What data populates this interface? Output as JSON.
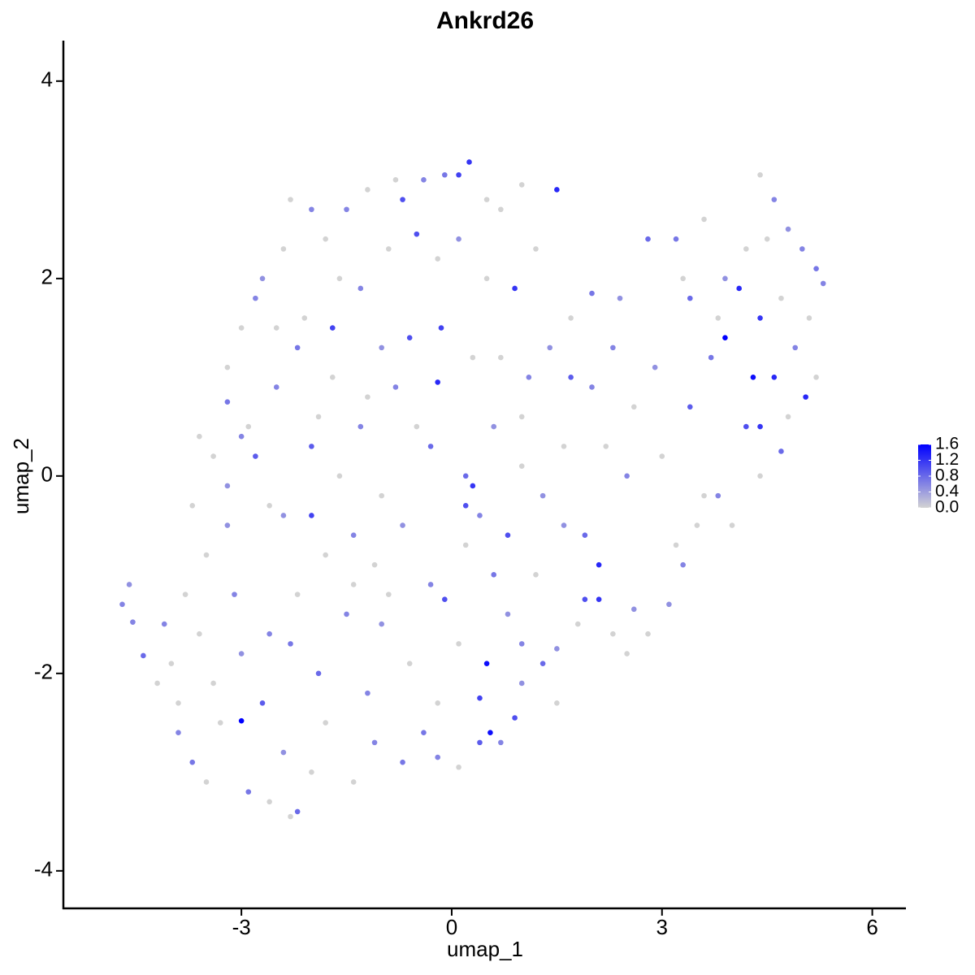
{
  "chart_data": {
    "type": "scatter",
    "title": "Ankrd26",
    "x_label": "umap_1",
    "y_label": "umap_2",
    "xlim": [
      -5.54,
      6.48
    ],
    "ylim": [
      -4.38,
      4.41
    ],
    "xticks": [
      -3,
      0,
      3,
      6
    ],
    "yticks": [
      -4,
      -2,
      0,
      2,
      4
    ],
    "colors": [
      "#D3D3D3",
      "#0000FF"
    ],
    "color_lim": [
      0,
      1.6
    ],
    "color_ticks": [
      {
        "value": 0,
        "label": "0.0"
      },
      0.4,
      0.8,
      1.2,
      1.6
    ],
    "x": [
      -4.7,
      -4.6,
      -4.55,
      -4.4,
      -4.2,
      -4.0,
      -3.9,
      -3.7,
      -3.5,
      -3.3,
      -3.0,
      -2.9,
      -2.6,
      -2.3,
      -2.2,
      -2.0,
      -1.4,
      -1.1,
      -0.7,
      -0.2,
      0.1,
      0.4,
      0.55,
      0.7,
      0.9,
      0.5,
      0.4,
      -0.2,
      -0.6,
      -1.0,
      -1.5,
      -1.9,
      -2.3,
      -2.6,
      -3.0,
      -3.4,
      -3.6,
      -3.8,
      -3.5,
      -3.2,
      -3.4,
      -3.0,
      -2.8,
      -2.6,
      -2.4,
      -2.0,
      -2.0,
      -1.6,
      -1.4,
      -1.1,
      -0.7,
      -0.3,
      -0.1,
      0.2,
      0.4,
      0.6,
      0.8,
      1.0,
      1.3,
      1.5,
      1.8,
      1.9,
      2.1,
      2.3,
      2.1,
      1.9,
      1.6,
      1.3,
      1.0,
      0.8,
      0.3,
      0.2,
      -0.3,
      -0.5,
      -0.8,
      -1.2,
      -1.3,
      -1.7,
      -2.2,
      -2.5,
      -2.8,
      -3.0,
      -3.2,
      -3.2,
      -2.9,
      -2.7,
      -2.4,
      -2.3,
      -2.0,
      -1.8,
      -1.5,
      -1.2,
      -0.8,
      -0.7,
      -0.4,
      -0.1,
      0.1,
      0.25,
      0.5,
      0.7,
      1.0,
      1.5,
      1.2,
      0.9,
      0.5,
      0.1,
      -0.2,
      -0.5,
      -0.9,
      -1.3,
      -1.7,
      -2.1,
      -1.9,
      -1.0,
      -0.6,
      -0.15,
      0.3,
      0.7,
      1.1,
      1.4,
      1.7,
      2.0,
      2.4,
      2.8,
      3.2,
      3.6,
      3.3,
      3.8,
      3.9,
      4.1,
      4.4,
      4.5,
      4.4,
      4.6,
      4.8,
      5.0,
      5.2,
      5.3,
      5.1,
      4.9,
      5.2,
      5.05,
      4.8,
      4.7,
      4.4,
      4.0,
      3.8,
      3.5,
      3.3,
      3.1,
      2.8,
      2.5,
      2.6,
      3.2,
      3.6,
      4.3,
      4.6,
      4.2,
      3.4,
      3.0,
      2.6,
      2.2,
      2.0,
      1.7,
      2.3,
      2.9,
      3.4,
      3.9,
      4.2,
      4.7,
      4.4,
      3.7,
      2.5,
      1.6,
      1.2,
      1.5,
      1.0,
      0.1,
      -0.4,
      -1.2,
      -1.8,
      -2.4,
      -2.7,
      -3.9,
      -4.1,
      -3.7,
      -3.6,
      -3.2,
      -2.5,
      -1.0,
      -0.2,
      0.2,
      -1.4,
      -0.9,
      -2.2,
      -3.1,
      0.6,
      1.0,
      -1.8,
      -1.6
    ],
    "y": [
      -1.3,
      -1.1,
      -1.48,
      -1.82,
      -2.1,
      -1.9,
      -2.6,
      -2.9,
      -3.1,
      -2.5,
      -2.48,
      -3.2,
      -3.3,
      -3.45,
      -3.4,
      -3.0,
      -3.1,
      -2.7,
      -2.9,
      -2.85,
      -2.95,
      -2.7,
      -2.6,
      -2.7,
      -2.45,
      -1.9,
      -2.25,
      -2.3,
      -1.9,
      -1.5,
      -1.4,
      -2.0,
      -1.7,
      -1.6,
      -1.8,
      -2.1,
      -1.6,
      -1.2,
      -0.8,
      -0.5,
      0.2,
      0.4,
      0.2,
      -0.3,
      -0.4,
      -0.4,
      0.3,
      0.0,
      -0.6,
      -0.9,
      -0.5,
      -1.1,
      -1.25,
      -0.7,
      -0.4,
      -1.0,
      -1.4,
      -1.7,
      -1.9,
      -1.75,
      -1.5,
      -1.25,
      -1.25,
      -1.6,
      -0.9,
      -0.6,
      -0.5,
      -0.2,
      0.1,
      -0.6,
      -0.1,
      0.0,
      0.3,
      0.5,
      0.9,
      0.8,
      0.5,
      1.0,
      1.3,
      1.5,
      1.8,
      1.5,
      1.1,
      0.75,
      0.5,
      2.0,
      2.3,
      2.8,
      2.7,
      2.4,
      2.7,
      2.9,
      3.0,
      2.8,
      3.0,
      3.05,
      3.05,
      3.18,
      2.8,
      2.7,
      2.95,
      2.9,
      2.3,
      1.9,
      2.0,
      2.4,
      2.2,
      2.45,
      2.3,
      1.9,
      1.5,
      1.6,
      0.6,
      1.3,
      1.4,
      1.5,
      1.2,
      1.2,
      1.0,
      1.3,
      1.0,
      1.85,
      1.8,
      2.4,
      2.4,
      2.6,
      2.0,
      1.6,
      1.4,
      1.9,
      1.6,
      2.4,
      3.05,
      2.8,
      2.5,
      2.3,
      2.1,
      1.95,
      1.6,
      1.3,
      1.0,
      0.8,
      0.6,
      0.25,
      0.0,
      -0.5,
      -0.2,
      -0.5,
      -0.9,
      -1.3,
      -1.6,
      -1.8,
      -1.35,
      -0.7,
      -0.2,
      1.0,
      1.0,
      0.5,
      0.7,
      0.2,
      0.7,
      0.3,
      0.9,
      1.6,
      1.3,
      1.1,
      1.8,
      2.0,
      2.3,
      1.8,
      0.5,
      1.2,
      0.0,
      0.3,
      -1.0,
      -2.3,
      -2.1,
      -1.7,
      -2.6,
      -2.2,
      -2.5,
      -2.8,
      -2.3,
      -2.3,
      -1.5,
      -0.3,
      0.4,
      -0.1,
      0.9,
      -0.2,
      0.95,
      -0.3,
      -1.1,
      -1.2,
      -1.2,
      -1.2,
      0.5,
      0.6,
      -0.8,
      2.0
    ],
    "values": [
      0.6,
      0.5,
      0.6,
      0.8,
      0,
      0,
      0.6,
      0.7,
      0,
      0,
      1.6,
      0.7,
      0,
      0,
      0.8,
      0,
      0,
      0.6,
      0.7,
      0.6,
      0,
      0.9,
      1.5,
      0.6,
      1.0,
      1.5,
      1.1,
      0,
      0,
      0.5,
      0.6,
      0.8,
      0.7,
      0.6,
      0.5,
      0,
      0,
      0,
      0,
      0.5,
      0,
      0.6,
      0.9,
      0,
      0.5,
      1.1,
      0.9,
      0,
      0.6,
      0,
      0.5,
      0.6,
      1.0,
      0,
      0.6,
      0.7,
      0.5,
      0.6,
      0.8,
      0.5,
      0,
      1.0,
      1.2,
      0,
      1.3,
      0.8,
      0.5,
      0.5,
      0,
      1.0,
      1.2,
      0.8,
      0.8,
      0,
      0.6,
      0,
      0.6,
      0,
      0.7,
      0,
      0.6,
      0,
      0,
      0.7,
      0,
      0.5,
      0,
      0,
      0.6,
      0,
      0.6,
      0,
      0,
      1.0,
      0.6,
      0.7,
      1.1,
      1.2,
      0,
      0,
      0,
      1.3,
      0,
      1.2,
      0,
      0.5,
      0,
      1.0,
      0,
      0.6,
      1.1,
      0,
      0,
      0.5,
      1.0,
      1.1,
      0,
      0,
      0.6,
      0.5,
      0.9,
      0.7,
      0.5,
      0.8,
      0.7,
      0,
      0,
      0,
      1.6,
      1.3,
      1.2,
      0,
      0,
      0.6,
      0.5,
      0.6,
      0.7,
      0.6,
      0,
      0.6,
      0,
      1.3,
      0,
      0.8,
      0,
      0,
      0.6,
      0,
      0.6,
      0.5,
      0,
      0,
      0.5,
      0,
      0,
      1.5,
      1.3,
      1.0,
      0.9,
      0,
      0,
      0,
      0.6,
      0,
      0.6,
      0.5,
      0.8,
      0.5,
      0,
      0,
      1.2,
      0.7,
      0.6,
      0,
      0,
      0,
      0.5,
      0,
      0.7,
      0.6,
      0,
      0.5,
      0.9,
      0,
      0.6,
      0,
      0,
      0.5,
      0.6,
      0,
      1.3,
      1.0,
      0,
      0,
      0,
      0.6,
      0.5,
      0,
      0,
      0
    ]
  }
}
